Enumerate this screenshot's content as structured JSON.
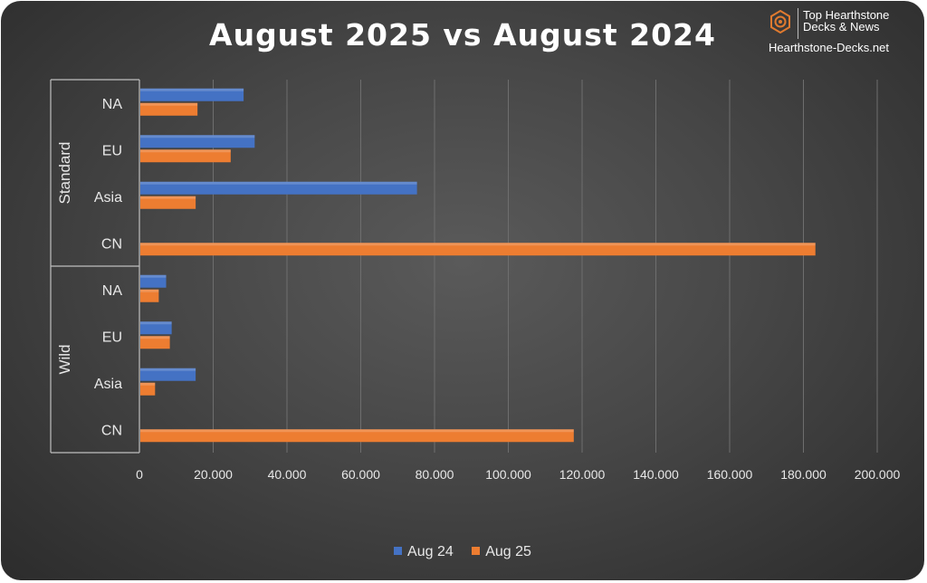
{
  "brand": {
    "line1": "Top Hearthstone",
    "line2": "Decks & News",
    "site": "Hearthstone-Decks.net"
  },
  "colors": {
    "aug24": "#4472C4",
    "aug25": "#ED7D31",
    "grid": "#6e6e6e",
    "text": "#e8e8e8",
    "logo": "#E07A2F"
  },
  "chart_data": {
    "type": "bar",
    "orientation": "horizontal",
    "title": "August 2025 vs August 2024",
    "xlabel": "",
    "ylabel": "",
    "xlim": [
      0,
      200000
    ],
    "grid": true,
    "legend_position": "bottom",
    "x_ticks": [
      "0",
      "20.000",
      "40.000",
      "60.000",
      "80.000",
      "100.000",
      "120.000",
      "140.000",
      "160.000",
      "180.000",
      "200.000"
    ],
    "groups": [
      {
        "name": "Standard",
        "categories": [
          "NA",
          "EU",
          "Asia",
          "CN"
        ]
      },
      {
        "name": "Wild",
        "categories": [
          "NA",
          "EU",
          "Asia",
          "CN"
        ]
      }
    ],
    "categories": [
      "Standard NA",
      "Standard EU",
      "Standard Asia",
      "Standard CN",
      "Wild NA",
      "Wild EU",
      "Wild Asia",
      "Wild CN"
    ],
    "series": [
      {
        "name": "Aug 24",
        "values": [
          28000,
          31000,
          75000,
          0,
          7000,
          8500,
          15000,
          0
        ]
      },
      {
        "name": "Aug 25",
        "values": [
          15500,
          24500,
          15000,
          183000,
          5000,
          8000,
          4000,
          117500
        ]
      }
    ]
  }
}
